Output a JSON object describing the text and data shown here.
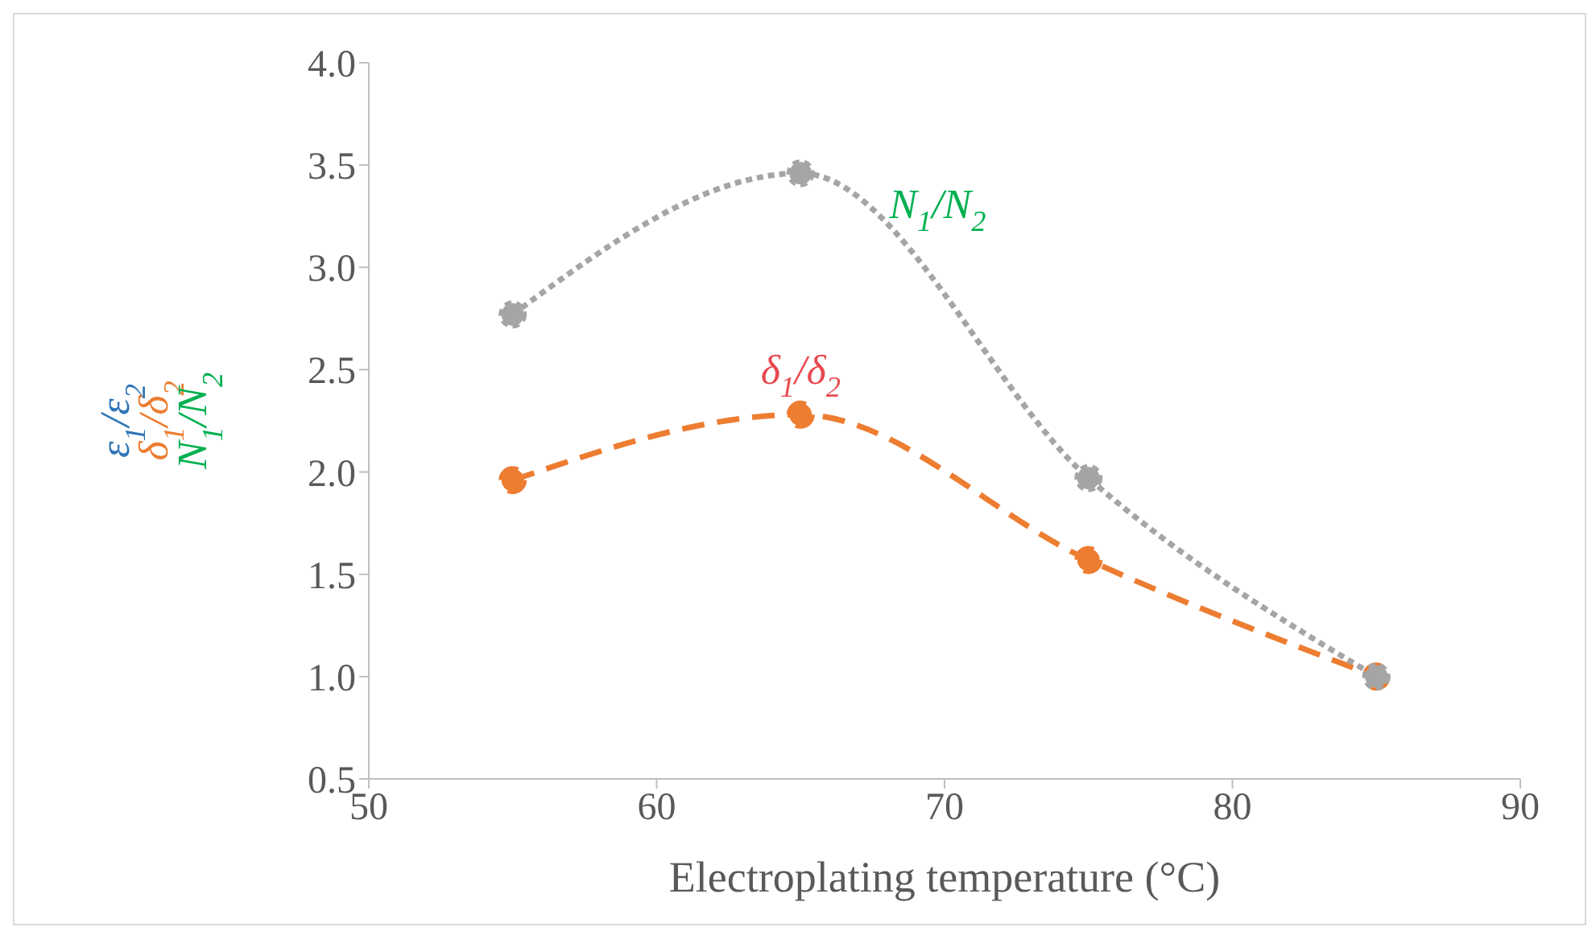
{
  "chart_data": {
    "type": "line",
    "xlabel": "Electroplating temperature (°C)",
    "ylabel": "ε$_{1}$/ε$_{2}$\nδ$_{1}$/δ$_{2}$\nN$_{1}$/N$_{2}$",
    "x": [
      55,
      65,
      75,
      85
    ],
    "series": [
      {
        "name": "N$_{1}$/N$_{2}$",
        "color": "#a5a5a5",
        "values": [
          2.77,
          3.46,
          1.97,
          1.0
        ],
        "line_style": "dotted"
      },
      {
        "name": "δ$_{1}$/δ$_{2}$",
        "color": "#ed7d31",
        "values": [
          1.96,
          2.28,
          1.57,
          1.0
        ],
        "line_style": "dashed"
      }
    ],
    "xlim": [
      50,
      90
    ],
    "xticks": [
      50,
      60,
      70,
      80,
      90
    ],
    "ylim": [
      0.5,
      4.0
    ],
    "yticks": [
      0.5,
      {
        "value": 1,
        "label": "1.0"
      },
      1.5,
      {
        "value": 2,
        "label": "2.0"
      },
      2.5,
      {
        "value": 3,
        "label": "3.0"
      },
      3.5,
      {
        "value": 4,
        "label": "4.0"
      }
    ],
    "marker": "circle",
    "grid": false
  }
}
